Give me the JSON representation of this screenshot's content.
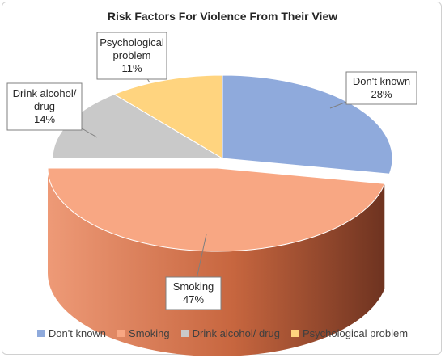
{
  "chart_data": {
    "type": "pie",
    "title": "Risk Factors For Violence From Their View",
    "categories": [
      "Don't known",
      "Smoking",
      "Drink alcohol/ drug",
      "Psychological problem"
    ],
    "values": [
      28,
      47,
      14,
      11
    ],
    "data_labels": [
      {
        "name": "Don't known",
        "lines": [
          "Don't known"
        ],
        "value": "28%"
      },
      {
        "name": "Smoking",
        "lines": [
          "Smoking"
        ],
        "value": "47%"
      },
      {
        "name": "Drink alcohol/ drug",
        "lines": [
          "Drink alcohol/",
          "drug"
        ],
        "value": "14%"
      },
      {
        "name": "Psychological problem",
        "lines": [
          "Psychological",
          "problem"
        ],
        "value": "11%"
      }
    ],
    "colors": [
      "#8faadc",
      "#f8a783",
      "#c9c9c9",
      "#ffd47f"
    ],
    "side_colors": [
      "#4a6aa8",
      "#b04e2c",
      "#8a8a8a",
      "#c4962e"
    ],
    "legend": "bottom",
    "style": "3d-exploded"
  }
}
